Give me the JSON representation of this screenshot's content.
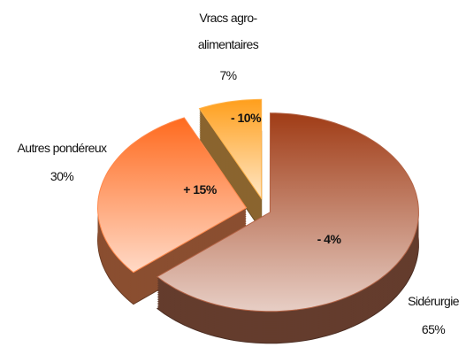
{
  "chart_data": {
    "type": "pie",
    "categories": [
      "Sidérurgie",
      "Autres pondéreux",
      "Vracs agro-alimentaires"
    ],
    "values": [
      65,
      30,
      7
    ],
    "value_labels": [
      "65%",
      "30%",
      "7%"
    ],
    "annotations": [
      "- 4%",
      "+ 15%",
      "- 10%"
    ],
    "colors": [
      "#a03c16",
      "#ff6a1e",
      "#ff9f1c"
    ]
  }
}
